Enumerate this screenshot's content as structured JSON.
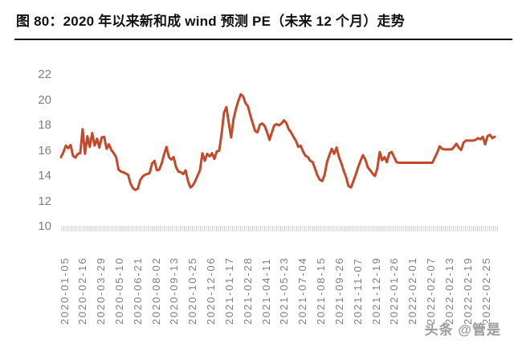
{
  "page": {
    "title": "图 80：2020 年以来新和成 wind 预测 PE（未来 12 个月）走势",
    "watermark": "头条 @管是"
  },
  "chart_data": {
    "type": "line",
    "title": "2020 年以来新和成 wind 预测 PE（未来 12 个月）走势",
    "xlabel": "",
    "ylabel": "",
    "ylim": [
      10,
      22
    ],
    "yticks": [
      22,
      20,
      18,
      16,
      14,
      12,
      10
    ],
    "grid": false,
    "legend_position": "none",
    "series_color": "#c4492b",
    "tick_comb_color": "#cccccc",
    "axis_label_color": "#7e7e7e",
    "x_tick_labels": [
      "2020-01-05",
      "2020-02-16",
      "2020-03-29",
      "2020-05-10",
      "2020-06-21",
      "2020-08-02",
      "2020-09-13",
      "2020-10-25",
      "2020-12-06",
      "2021-01-17",
      "2021-02-28",
      "2021-04-11",
      "2021-05-23",
      "2021-07-04",
      "2021-08-15",
      "2021-09-26",
      "2021-11-07",
      "2021-12-19",
      "2022-01-26",
      "2022-02-01",
      "2022-02-07",
      "2022-02-13",
      "2022-02-19",
      "2022-02-25"
    ],
    "x_range": [
      "2020-01-05",
      "2022-02-25"
    ],
    "values": [
      15.5,
      15.9,
      16.4,
      16.2,
      16.45,
      15.6,
      15.45,
      15.75,
      15.8,
      17.7,
      15.75,
      17.15,
      16.3,
      17.4,
      16.4,
      16.95,
      16.25,
      17.05,
      17.1,
      16.15,
      16.5,
      16.05,
      15.8,
      15.5,
      14.5,
      14.35,
      14.3,
      14.2,
      14.1,
      13.4,
      13.05,
      12.9,
      13.0,
      13.65,
      13.95,
      14.1,
      14.15,
      14.25,
      15.0,
      15.2,
      14.45,
      14.5,
      15.0,
      15.7,
      16.3,
      15.5,
      15.3,
      15.5,
      14.7,
      14.35,
      14.3,
      14.15,
      14.45,
      13.6,
      13.1,
      13.25,
      13.6,
      14.05,
      14.45,
      15.8,
      15.2,
      15.75,
      15.55,
      15.8,
      15.35,
      15.95,
      16.0,
      17.3,
      19.0,
      19.45,
      18.2,
      17.05,
      18.5,
      19.3,
      19.95,
      20.45,
      20.3,
      19.75,
      19.5,
      18.8,
      18.15,
      17.55,
      17.45,
      18.05,
      18.15,
      17.95,
      17.45,
      16.85,
      17.45,
      18.0,
      18.1,
      18.0,
      18.15,
      18.4,
      18.2,
      17.7,
      17.45,
      17.1,
      16.8,
      16.3,
      16.4,
      15.95,
      15.6,
      15.5,
      15.2,
      15.1,
      14.6,
      14.05,
      13.7,
      13.6,
      14.1,
      15.1,
      15.65,
      16.15,
      15.75,
      16.25,
      15.5,
      15.0,
      14.4,
      13.9,
      13.2,
      13.1,
      13.6,
      14.1,
      14.7,
      15.2,
      15.65,
      15.3,
      14.7,
      14.45,
      14.2,
      14.0,
      14.6,
      15.9,
      15.25,
      15.5,
      15.1,
      15.8,
      15.9,
      15.5,
      15.1,
      15.05,
      15.05,
      15.05,
      15.05,
      15.05,
      15.05,
      15.05,
      15.05,
      15.05,
      15.05,
      15.05,
      15.05,
      15.05,
      15.05,
      15.05,
      15.45,
      15.85,
      16.35,
      16.15,
      16.1,
      16.1,
      16.1,
      16.1,
      16.3,
      16.55,
      16.25,
      16.05,
      16.65,
      16.8,
      16.8,
      16.8,
      16.8,
      16.85,
      17.0,
      16.9,
      17.1,
      16.5,
      17.15,
      17.25,
      17.0,
      17.1
    ]
  }
}
